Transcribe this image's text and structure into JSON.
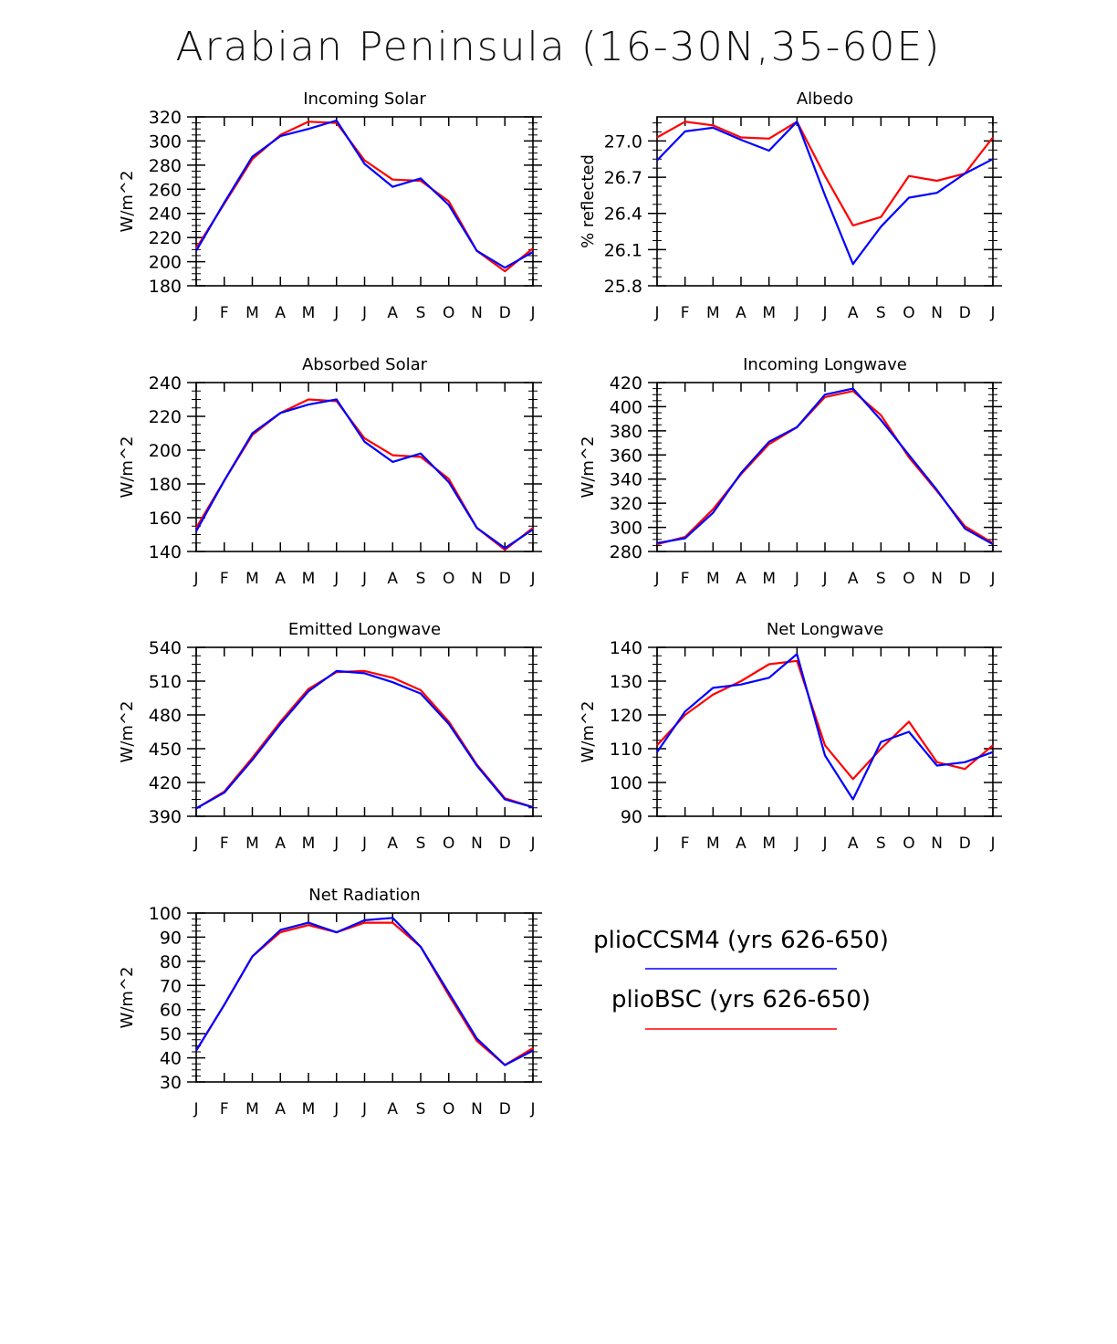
{
  "title": "Arabian Peninsula (16-30N,35-60E)",
  "colors": {
    "pliocCSM4": "#0000ff",
    "plioBSC": "#ff0000",
    "axis": "#000000"
  },
  "legend": [
    {
      "label": "plioCCSM4 (yrs 626-650)",
      "color": "#0000ff"
    },
    {
      "label": "plioBSC (yrs 626-650)",
      "color": "#ff0000"
    }
  ],
  "chart_data": [
    {
      "type": "line",
      "title": "Incoming Solar",
      "ylabel": "W/m^2",
      "categories": [
        "J",
        "F",
        "M",
        "A",
        "M",
        "J",
        "J",
        "A",
        "S",
        "O",
        "N",
        "D",
        "J"
      ],
      "ylim": [
        180,
        320
      ],
      "yticks": [
        "180",
        "200",
        "220",
        "240",
        "260",
        "280",
        "300",
        "320"
      ],
      "series": [
        {
          "name": "plioCCSM4 (yrs 626-650)",
          "values": [
            209,
            249,
            287,
            304,
            310,
            317,
            281,
            262,
            269,
            247,
            209,
            195,
            208
          ]
        },
        {
          "name": "plioBSC (yrs 626-650)",
          "values": [
            211,
            248,
            285,
            305,
            316,
            315,
            284,
            268,
            267,
            250,
            209,
            192,
            211
          ]
        }
      ]
    },
    {
      "type": "line",
      "title": "Albedo",
      "ylabel": "% reflected",
      "categories": [
        "J",
        "F",
        "M",
        "A",
        "M",
        "J",
        "J",
        "A",
        "S",
        "O",
        "N",
        "D",
        "J"
      ],
      "ylim": [
        25.8,
        27.2
      ],
      "yticks": [
        "25.8",
        "26.1",
        "26.4",
        "26.7",
        "27.0"
      ],
      "series": [
        {
          "name": "plioCCSM4 (yrs 626-650)",
          "values": [
            26.84,
            27.08,
            27.11,
            27.01,
            26.92,
            27.16,
            26.55,
            25.98,
            26.29,
            26.53,
            26.57,
            26.73,
            26.85
          ]
        },
        {
          "name": "plioBSC (yrs 626-650)",
          "values": [
            27.03,
            27.16,
            27.13,
            27.03,
            27.02,
            27.16,
            26.71,
            26.3,
            26.37,
            26.71,
            26.67,
            26.73,
            27.03
          ]
        }
      ]
    },
    {
      "type": "line",
      "title": "Absorbed Solar",
      "ylabel": "W/m^2",
      "categories": [
        "J",
        "F",
        "M",
        "A",
        "M",
        "J",
        "J",
        "A",
        "S",
        "O",
        "N",
        "D",
        "J"
      ],
      "ylim": [
        140,
        240
      ],
      "yticks": [
        "140",
        "160",
        "180",
        "200",
        "220",
        "240"
      ],
      "series": [
        {
          "name": "plioCCSM4 (yrs 626-650)",
          "values": [
            152,
            182,
            210,
            222,
            227,
            230,
            205,
            193,
            198,
            181,
            154,
            142,
            153
          ]
        },
        {
          "name": "plioBSC (yrs 626-650)",
          "values": [
            154,
            182,
            209,
            222,
            230,
            229,
            207,
            197,
            196,
            183,
            154,
            141,
            154
          ]
        }
      ]
    },
    {
      "type": "line",
      "title": "Incoming Longwave",
      "ylabel": "W/m^2",
      "categories": [
        "J",
        "F",
        "M",
        "A",
        "M",
        "J",
        "J",
        "A",
        "S",
        "O",
        "N",
        "D",
        "J"
      ],
      "ylim": [
        280,
        420
      ],
      "yticks": [
        "280",
        "300",
        "320",
        "340",
        "360",
        "380",
        "400",
        "420"
      ],
      "series": [
        {
          "name": "plioCCSM4 (yrs 626-650)",
          "values": [
            287,
            291,
            312,
            345,
            371,
            383,
            410,
            415,
            389,
            360,
            331,
            299,
            286
          ]
        },
        {
          "name": "plioBSC (yrs 626-650)",
          "values": [
            286,
            292,
            315,
            344,
            369,
            383,
            408,
            413,
            393,
            358,
            330,
            301,
            287
          ]
        }
      ]
    },
    {
      "type": "line",
      "title": "Emitted Longwave",
      "ylabel": "W/m^2",
      "categories": [
        "J",
        "F",
        "M",
        "A",
        "M",
        "J",
        "J",
        "A",
        "S",
        "O",
        "N",
        "D",
        "J"
      ],
      "ylim": [
        390,
        540
      ],
      "yticks": [
        "390",
        "420",
        "450",
        "480",
        "510",
        "540"
      ],
      "series": [
        {
          "name": "plioCCSM4 (yrs 626-650)",
          "values": [
            397,
            411,
            440,
            472,
            501,
            519,
            517,
            509,
            499,
            472,
            435,
            405,
            398
          ]
        },
        {
          "name": "plioBSC (yrs 626-650)",
          "values": [
            397,
            412,
            442,
            474,
            503,
            518,
            519,
            513,
            502,
            474,
            436,
            406,
            398
          ]
        }
      ]
    },
    {
      "type": "line",
      "title": "Net Longwave",
      "ylabel": "W/m^2",
      "categories": [
        "J",
        "F",
        "M",
        "A",
        "M",
        "J",
        "J",
        "A",
        "S",
        "O",
        "N",
        "D",
        "J"
      ],
      "ylim": [
        90,
        140
      ],
      "yticks": [
        "90",
        "100",
        "110",
        "120",
        "130",
        "140"
      ],
      "series": [
        {
          "name": "plioCCSM4 (yrs 626-650)",
          "values": [
            109,
            121,
            128,
            129,
            131,
            138,
            108,
            95,
            112,
            115,
            105,
            106,
            109
          ]
        },
        {
          "name": "plioBSC (yrs 626-650)",
          "values": [
            111,
            120,
            126,
            130,
            135,
            136,
            111,
            101,
            110,
            118,
            106,
            104,
            111
          ]
        }
      ]
    },
    {
      "type": "line",
      "title": "Net Radiation",
      "ylabel": "W/m^2",
      "categories": [
        "J",
        "F",
        "M",
        "A",
        "M",
        "J",
        "J",
        "A",
        "S",
        "O",
        "N",
        "D",
        "J"
      ],
      "ylim": [
        30,
        100
      ],
      "yticks": [
        "30",
        "40",
        "50",
        "60",
        "70",
        "80",
        "90",
        "100"
      ],
      "series": [
        {
          "name": "plioCCSM4 (yrs 626-650)",
          "values": [
            43,
            62,
            82,
            93,
            96,
            92,
            97,
            98,
            86,
            67,
            48,
            37,
            43
          ]
        },
        {
          "name": "plioBSC (yrs 626-650)",
          "values": [
            43,
            62,
            82,
            92,
            95,
            92,
            96,
            96,
            86,
            66,
            47,
            37,
            44
          ]
        }
      ]
    }
  ]
}
